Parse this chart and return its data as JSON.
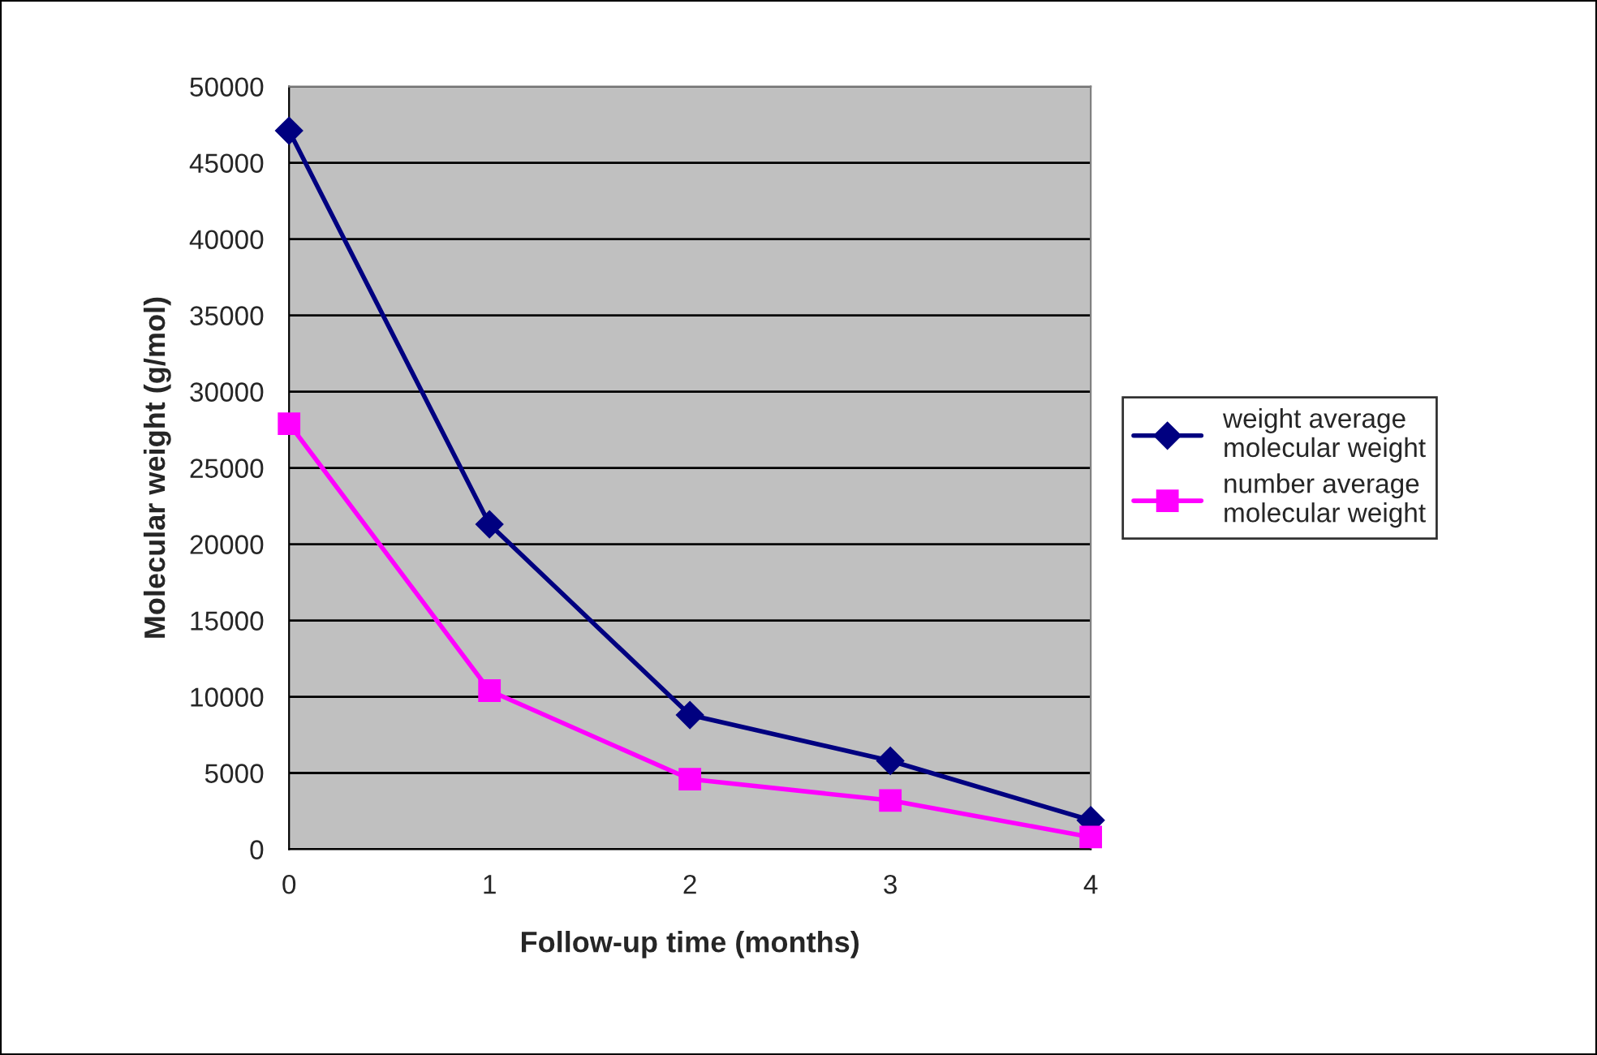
{
  "chart_data": {
    "type": "line",
    "xlabel": "Follow-up time (months)",
    "ylabel": "Molecular weight (g/mol)",
    "x": [
      0,
      1,
      2,
      3,
      4
    ],
    "xlim": [
      0,
      4
    ],
    "xticks": [
      0,
      1,
      2,
      3,
      4
    ],
    "ylim": [
      0,
      50000
    ],
    "yticks": [
      0,
      5000,
      10000,
      15000,
      20000,
      25000,
      30000,
      35000,
      40000,
      45000,
      50000
    ],
    "grid": "y",
    "legend": "right",
    "series": [
      {
        "name": "weight average molecular weight",
        "color": "#000080",
        "marker": "diamond",
        "values": [
          47100,
          21300,
          8800,
          5800,
          1900
        ]
      },
      {
        "name": "number average molecular weight",
        "color": "#ff00ff",
        "marker": "square",
        "values": [
          27900,
          10400,
          4600,
          3200,
          800
        ]
      }
    ]
  }
}
